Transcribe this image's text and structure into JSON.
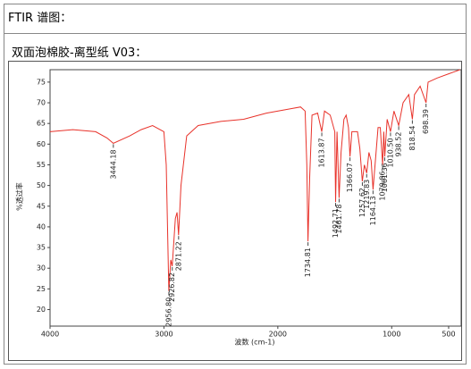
{
  "document": {
    "heading": "FTIR 谱图：",
    "sample": "双面泡棉胶-离型纸 V03："
  },
  "chart_data": {
    "type": "line",
    "y_label": "%透过率",
    "x_label": "波数 (cm-1)",
    "xlim": [
      4000,
      390
    ],
    "xticks": [
      4000,
      3000,
      2000,
      1000,
      500
    ],
    "ylim": [
      16,
      78
    ],
    "yticks": [
      20,
      25,
      30,
      35,
      40,
      45,
      50,
      55,
      60,
      65,
      70,
      75
    ],
    "x": [
      4000,
      3800,
      3600,
      3500,
      3444.18,
      3300,
      3200,
      3100,
      3000,
      2980,
      2956.8,
      2940,
      2926.82,
      2900,
      2885,
      2871.22,
      2850,
      2800,
      2700,
      2500,
      2300,
      2100,
      1900,
      1800,
      1760,
      1745,
      1734.81,
      1720,
      1700,
      1650,
      1613.87,
      1590,
      1540,
      1500,
      1492.71,
      1480,
      1461.78,
      1445,
      1420,
      1400,
      1380,
      1366.07,
      1350,
      1300,
      1280,
      1257.62,
      1240,
      1219.83,
      1200,
      1180,
      1164.13,
      1140,
      1120,
      1100,
      1079.86,
      1070,
      1061.36,
      1040,
      1010.5,
      980,
      938.52,
      900,
      850,
      818.54,
      800,
      750,
      698.39,
      680,
      600,
      500,
      450,
      400
    ],
    "series": [
      {
        "color": "#e8322a",
        "values": [
          63,
          63.5,
          63,
          61.5,
          60.2,
          62,
          63.5,
          64.5,
          63,
          55,
          24.5,
          32,
          30.5,
          42,
          43.5,
          38,
          50,
          62,
          64.5,
          65.5,
          66,
          67.5,
          68.5,
          69,
          68,
          55,
          36.5,
          52,
          67,
          67.5,
          63,
          68,
          67,
          63,
          46,
          63,
          47,
          58,
          66,
          67,
          64,
          57,
          63,
          63,
          59,
          51,
          55,
          53,
          58,
          56,
          49,
          57,
          64,
          64,
          55,
          63,
          57,
          66,
          63,
          68,
          64.5,
          70,
          72,
          66,
          72,
          74,
          70,
          75,
          76,
          77,
          77.5,
          78
        ]
      }
    ],
    "peaks": [
      {
        "x": 3444.18,
        "y": 60.2,
        "label": "3444.18"
      },
      {
        "x": 2956.8,
        "y": 24.5,
        "label": "2956.80"
      },
      {
        "x": 2926.82,
        "y": 30.5,
        "label": "2926.82"
      },
      {
        "x": 2871.22,
        "y": 38,
        "label": "2871.22"
      },
      {
        "x": 1734.81,
        "y": 36.5,
        "label": "1734.81"
      },
      {
        "x": 1613.87,
        "y": 63,
        "label": "1613.87"
      },
      {
        "x": 1492.71,
        "y": 46,
        "label": "1492.71"
      },
      {
        "x": 1461.78,
        "y": 47,
        "label": "1461.78"
      },
      {
        "x": 1366.07,
        "y": 57,
        "label": "1366.07"
      },
      {
        "x": 1257.62,
        "y": 51,
        "label": "1257.62"
      },
      {
        "x": 1219.83,
        "y": 53,
        "label": "1219.83"
      },
      {
        "x": 1164.13,
        "y": 49,
        "label": "1164.13"
      },
      {
        "x": 1079.86,
        "y": 55,
        "label": "1079.86"
      },
      {
        "x": 1061.36,
        "y": 57,
        "label": "1061.36"
      },
      {
        "x": 1010.5,
        "y": 63,
        "label": "1010.50"
      },
      {
        "x": 938.52,
        "y": 64.5,
        "label": "938.52"
      },
      {
        "x": 818.54,
        "y": 66,
        "label": "818.54"
      },
      {
        "x": 698.39,
        "y": 70,
        "label": "698.39"
      }
    ]
  }
}
